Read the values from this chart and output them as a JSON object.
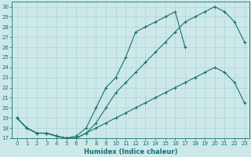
{
  "xlabel": "Humidex (Indice chaleur)",
  "xlim": [
    -0.5,
    23.5
  ],
  "ylim": [
    17,
    30.5
  ],
  "xticks": [
    0,
    1,
    2,
    3,
    4,
    5,
    6,
    7,
    8,
    9,
    10,
    11,
    12,
    13,
    14,
    15,
    16,
    17,
    18,
    19,
    20,
    21,
    22,
    23
  ],
  "yticks": [
    17,
    18,
    19,
    20,
    21,
    22,
    23,
    24,
    25,
    26,
    27,
    28,
    29,
    30
  ],
  "bg_color": "#cce8e8",
  "grid_color": "#a8d0d0",
  "line_color": "#1a7070",
  "line1_x": [
    0,
    1,
    2,
    3,
    4,
    5,
    6,
    7,
    8,
    9,
    10,
    11,
    12,
    13,
    14,
    15,
    16,
    17,
    18,
    19,
    20,
    21,
    22,
    23
  ],
  "line1_y": [
    19.0,
    18.0,
    17.5,
    17.5,
    17.2,
    17.0,
    17.0,
    17.5,
    18.5,
    20.0,
    21.5,
    22.5,
    23.5,
    24.5,
    25.5,
    26.5,
    27.5,
    28.5,
    29.0,
    29.5,
    30.0,
    29.5,
    28.5,
    26.5
  ],
  "line2_x": [
    0,
    1,
    2,
    3,
    4,
    5,
    6,
    7,
    8,
    9,
    10,
    11,
    12,
    13,
    14,
    15,
    16,
    17
  ],
  "line2_y": [
    19.0,
    18.0,
    17.5,
    17.5,
    17.2,
    17.0,
    17.2,
    18.0,
    20.0,
    22.0,
    23.0,
    25.0,
    27.5,
    28.0,
    28.5,
    29.0,
    29.5,
    26.0
  ],
  "line3_x": [
    0,
    1,
    2,
    3,
    4,
    5,
    6,
    7,
    8,
    9,
    10,
    11,
    12,
    13,
    14,
    15,
    16,
    17,
    18,
    19,
    20,
    21,
    22,
    23
  ],
  "line3_y": [
    19.0,
    18.0,
    17.5,
    17.5,
    17.2,
    17.0,
    17.0,
    17.5,
    18.0,
    18.5,
    19.0,
    19.5,
    20.0,
    20.5,
    21.0,
    21.5,
    22.0,
    22.5,
    23.0,
    23.5,
    24.0,
    23.5,
    22.5,
    20.5
  ],
  "marker": "+",
  "markersize": 3,
  "markeredgewidth": 0.8,
  "linewidth": 0.8,
  "tick_fontsize": 5,
  "xlabel_fontsize": 6.0
}
